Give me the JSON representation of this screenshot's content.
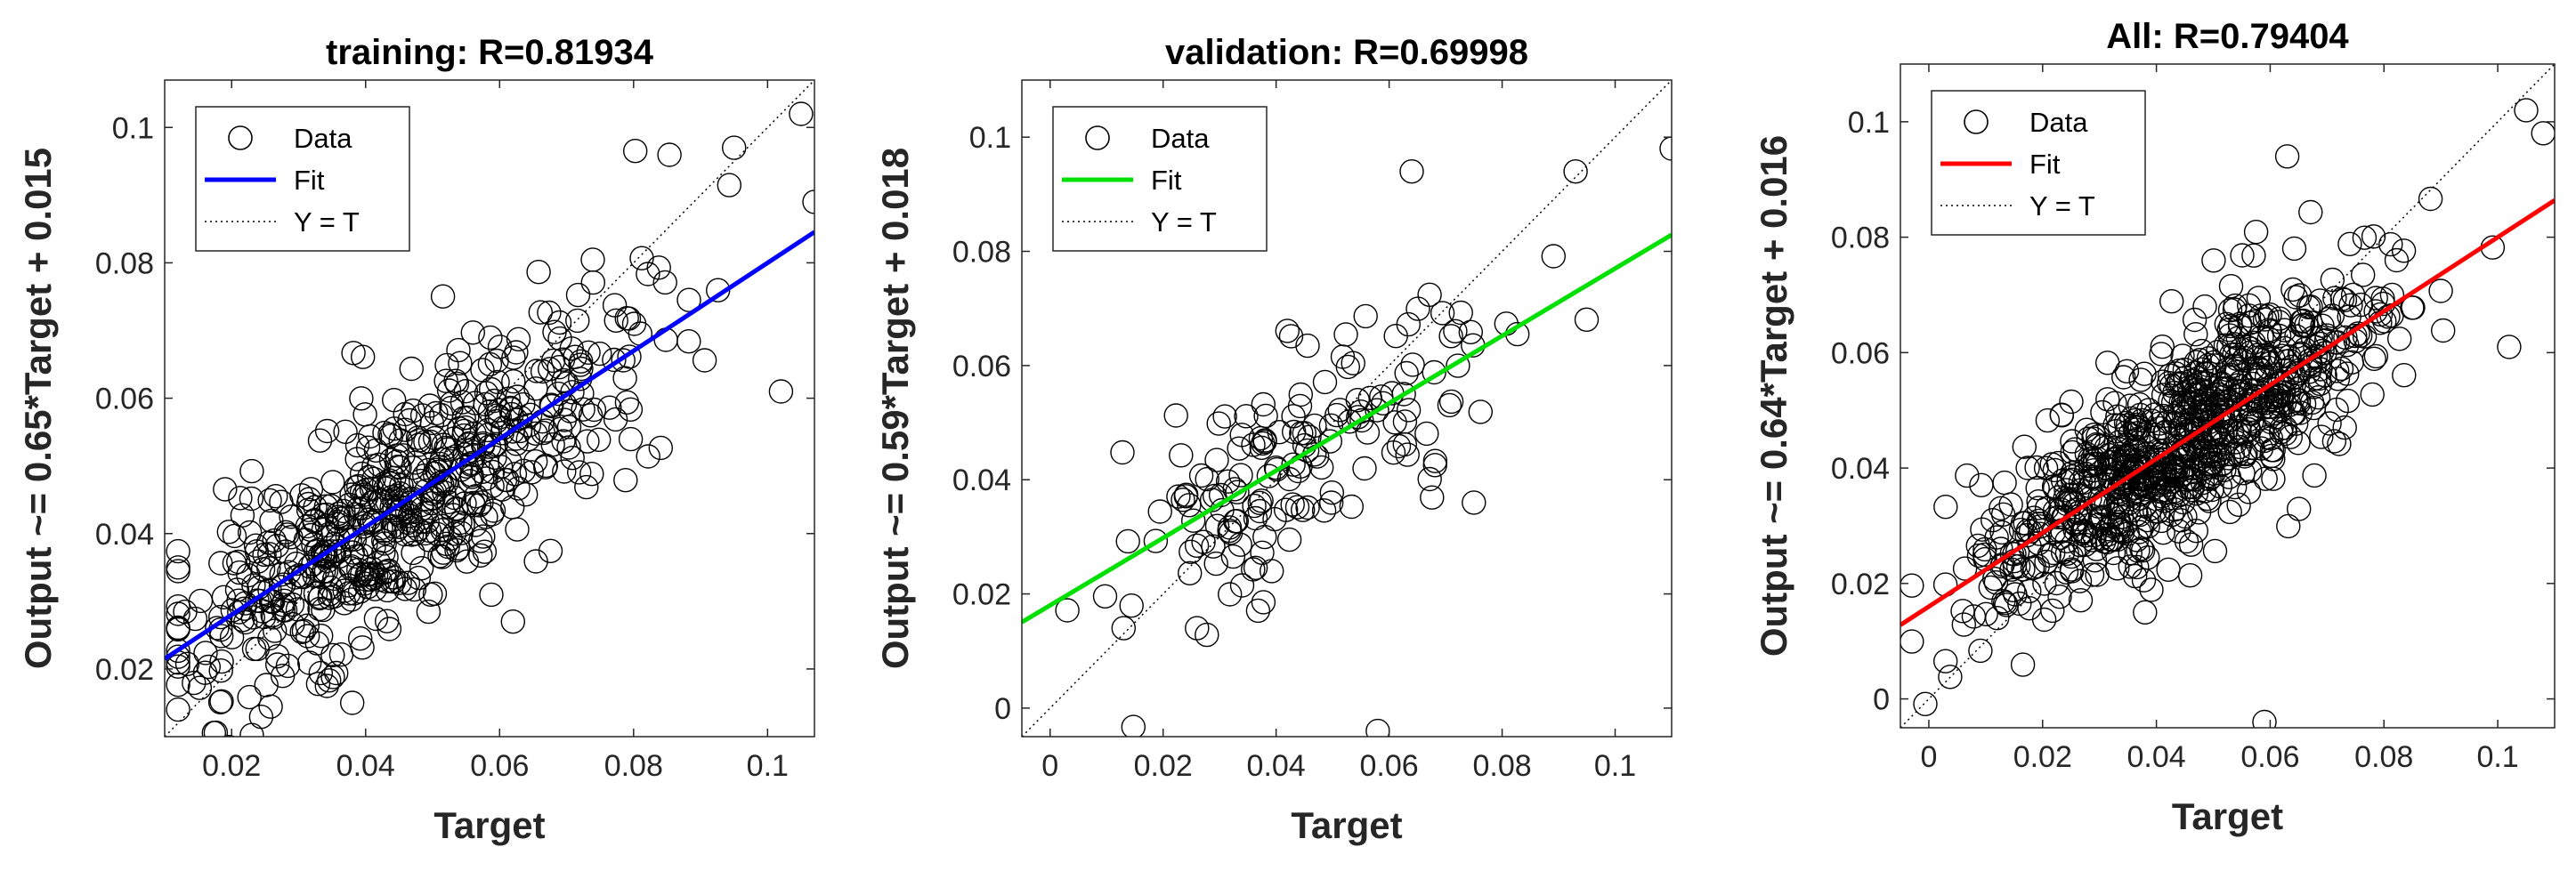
{
  "chart_data": [
    {
      "type": "scatter",
      "title": "training: R=0.81934",
      "xlabel": "Target",
      "ylabel": "Output ~= 0.65*Target + 0.015",
      "xlim": [
        0.01,
        0.107
      ],
      "ylim": [
        0.01,
        0.107
      ],
      "xticks": [
        0.02,
        0.04,
        0.06,
        0.08,
        0.1
      ],
      "yticks": [
        0.02,
        0.04,
        0.06,
        0.08,
        0.1
      ],
      "xtick_labels": [
        "0.02",
        "0.04",
        "0.06",
        "0.08",
        "0.1"
      ],
      "ytick_labels": [
        "0.02",
        "0.04",
        "0.06",
        "0.08",
        "0.1"
      ],
      "fit": {
        "slope": 0.65,
        "intercept": 0.015,
        "color": "#0000ff"
      },
      "legend": {
        "position": "top-left",
        "entries": [
          "Data",
          "Fit",
          "Y = T"
        ]
      },
      "grid": false,
      "n_points": 620,
      "seed": 11,
      "spread": 0.0085,
      "x_mean": 0.045,
      "x_sd": 0.017,
      "points": [
        [
          0.038,
          0.015
        ],
        [
          0.105,
          0.102
        ],
        [
          0.095,
          0.097
        ],
        [
          0.107,
          0.089
        ],
        [
          0.102,
          0.061
        ],
        [
          0.062,
          0.027
        ],
        [
          0.012,
          0.014
        ]
      ]
    },
    {
      "type": "scatter",
      "title": "validation: R=0.69998",
      "xlabel": "Target",
      "ylabel": "Output ~= 0.59*Target + 0.018",
      "xlim": [
        -0.005,
        0.11
      ],
      "ylim": [
        -0.005,
        0.11
      ],
      "xticks": [
        0,
        0.02,
        0.04,
        0.06,
        0.08,
        0.1
      ],
      "yticks": [
        0,
        0.02,
        0.04,
        0.06,
        0.08,
        0.1
      ],
      "xtick_labels": [
        "0",
        "0.02",
        "0.04",
        "0.06",
        "0.08",
        "0.1"
      ],
      "ytick_labels": [
        "0",
        "0.02",
        "0.04",
        "0.06",
        "0.08",
        "0.1"
      ],
      "fit": {
        "slope": 0.59,
        "intercept": 0.018,
        "color": "#00e000"
      },
      "legend": {
        "position": "top-left",
        "entries": [
          "Data",
          "Fit",
          "Y = T"
        ]
      },
      "grid": false,
      "n_points": 160,
      "seed": 29,
      "spread": 0.009,
      "x_mean": 0.045,
      "x_sd": 0.017,
      "points": [
        [
          0.058,
          -0.004
        ],
        [
          0.11,
          0.098
        ],
        [
          0.093,
          0.094
        ],
        [
          0.064,
          0.094
        ],
        [
          0.013,
          0.014
        ],
        [
          0.026,
          0.014
        ],
        [
          0.075,
          0.036
        ]
      ]
    },
    {
      "type": "scatter",
      "title": "All: R=0.79404",
      "xlabel": "Target",
      "ylabel": "Output ~= 0.64*Target + 0.016",
      "xlim": [
        -0.005,
        0.11
      ],
      "ylim": [
        -0.005,
        0.11
      ],
      "xticks": [
        0,
        0.02,
        0.04,
        0.06,
        0.08,
        0.1
      ],
      "yticks": [
        0,
        0.02,
        0.04,
        0.06,
        0.08,
        0.1
      ],
      "xtick_labels": [
        "0",
        "0.02",
        "0.04",
        "0.06",
        "0.08",
        "0.1"
      ],
      "ytick_labels": [
        "0",
        "0.02",
        "0.04",
        "0.06",
        "0.08",
        "0.1"
      ],
      "fit": {
        "slope": 0.64,
        "intercept": 0.016,
        "color": "#ff0000"
      },
      "legend": {
        "position": "top-left",
        "entries": [
          "Data",
          "Fit",
          "Y = T"
        ]
      },
      "grid": false,
      "n_points": 880,
      "seed": 47,
      "spread": 0.0085,
      "x_mean": 0.045,
      "x_sd": 0.017,
      "points": [
        [
          0.059,
          -0.004
        ],
        [
          0.105,
          0.102
        ],
        [
          0.108,
          0.098
        ],
        [
          0.102,
          0.061
        ],
        [
          0.063,
          0.094
        ],
        [
          0.038,
          0.015
        ],
        [
          0.012,
          0.014
        ]
      ]
    }
  ]
}
